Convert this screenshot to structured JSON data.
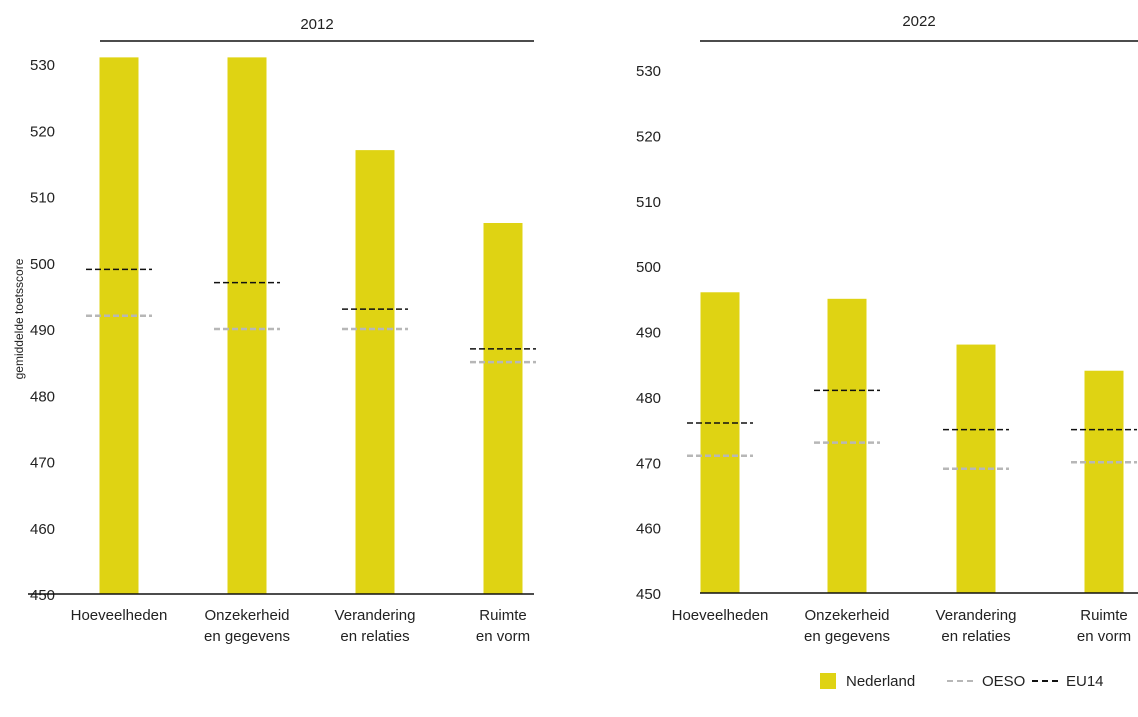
{
  "colors": {
    "bar": "#dfd313",
    "oeso": "#b7b7b7",
    "eu14": "#111111",
    "axis": "#111111",
    "text": "#222222"
  },
  "legend": {
    "nederland": "Nederland",
    "oeso": "OESO",
    "eu14": "EU14"
  },
  "chart_data": [
    {
      "type": "bar",
      "title": "2012",
      "ylabel": "gemiddelde toetsscore",
      "ylim": [
        450,
        530
      ],
      "yticks": [
        450,
        460,
        470,
        480,
        490,
        500,
        510,
        520,
        530
      ],
      "categories": [
        [
          "Hoeveelheden"
        ],
        [
          "Onzekerheid",
          "en gegevens"
        ],
        [
          "Verandering",
          "en relaties"
        ],
        [
          "Ruimte",
          "en vorm"
        ]
      ],
      "series": [
        {
          "name": "Nederland",
          "kind": "bar",
          "values": [
            531,
            531,
            517,
            506
          ]
        },
        {
          "name": "OESO",
          "kind": "dashed-marker",
          "values": [
            492,
            490,
            490,
            485
          ]
        },
        {
          "name": "EU14",
          "kind": "dashed-marker",
          "values": [
            499,
            497,
            493,
            487
          ]
        }
      ]
    },
    {
      "type": "bar",
      "title": "2022",
      "ylabel": "",
      "ylim": [
        450,
        530
      ],
      "yticks": [
        450,
        460,
        470,
        480,
        490,
        500,
        510,
        520,
        530
      ],
      "categories": [
        [
          "Hoeveelheden"
        ],
        [
          "Onzekerheid",
          "en gegevens"
        ],
        [
          "Verandering",
          "en relaties"
        ],
        [
          "Ruimte",
          "en vorm"
        ]
      ],
      "series": [
        {
          "name": "Nederland",
          "kind": "bar",
          "values": [
            496,
            495,
            488,
            484
          ]
        },
        {
          "name": "OESO",
          "kind": "dashed-marker",
          "values": [
            471,
            473,
            469,
            470
          ]
        },
        {
          "name": "EU14",
          "kind": "dashed-marker",
          "values": [
            476,
            481,
            475,
            475
          ]
        }
      ]
    }
  ]
}
